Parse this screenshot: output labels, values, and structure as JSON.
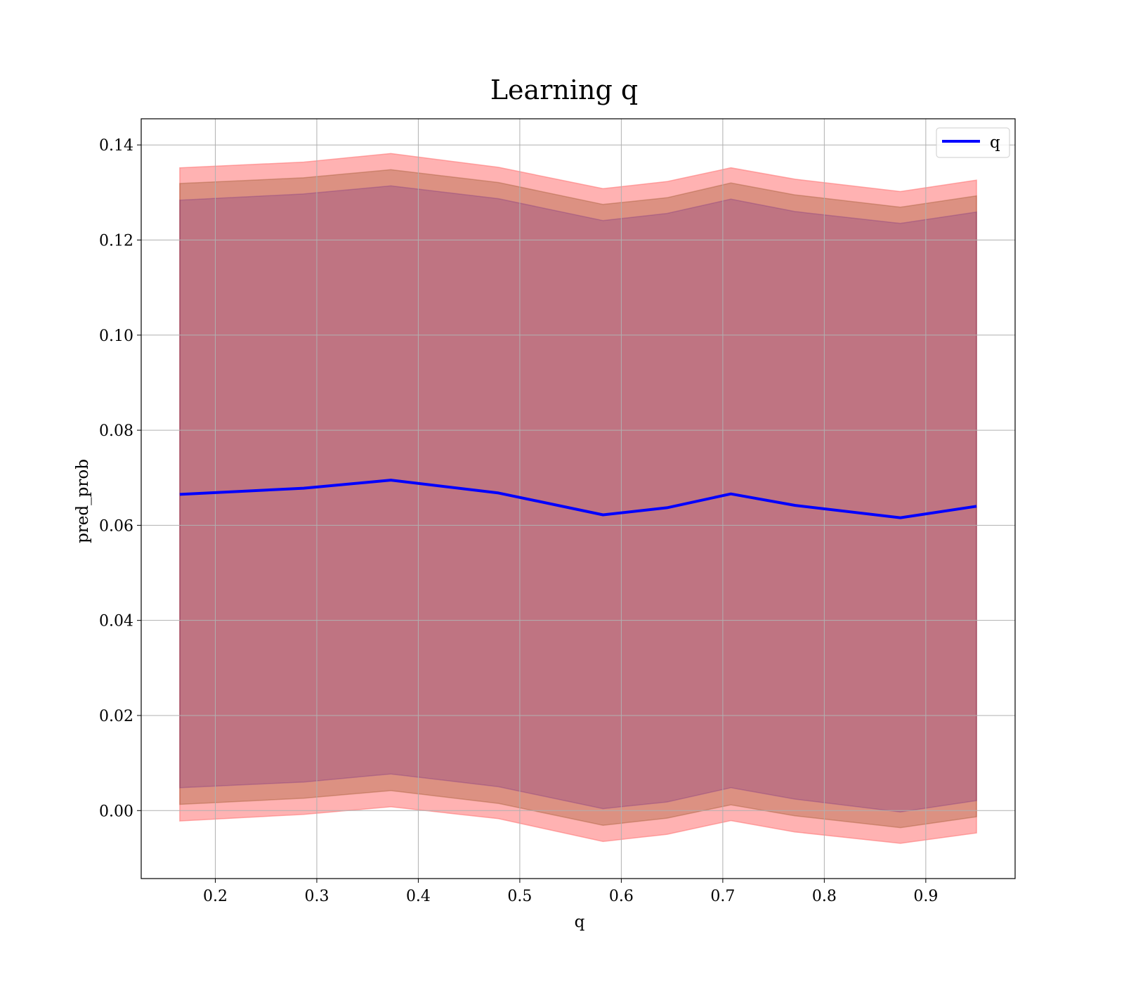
{
  "chart_data": {
    "type": "line",
    "title": "Learning q",
    "xlabel": "q",
    "ylabel": "pred_prob",
    "xlim": [
      0.127,
      0.988
    ],
    "ylim": [
      -0.0143,
      0.1455
    ],
    "grid": true,
    "legend_position": "top-right",
    "x_ticks": [
      "0.2",
      "0.3",
      "0.4",
      "0.5",
      "0.6",
      "0.7",
      "0.8",
      "0.9"
    ],
    "y_ticks": [
      "0.00",
      "0.02",
      "0.04",
      "0.06",
      "0.08",
      "0.10",
      "0.12",
      "0.14"
    ],
    "x": [
      0.165,
      0.287,
      0.373,
      0.479,
      0.582,
      0.645,
      0.708,
      0.771,
      0.875,
      0.95
    ],
    "series": [
      {
        "name": "q",
        "color": "#0000ff",
        "values": [
          0.0665,
          0.0678,
          0.0695,
          0.0668,
          0.0622,
          0.0637,
          0.0666,
          0.0642,
          0.0616,
          0.064
        ]
      }
    ],
    "bands": [
      {
        "color": "#ff6666",
        "opacity": 0.5,
        "lower": [
          -0.0022,
          -0.0008,
          0.0008,
          -0.0017,
          -0.0065,
          -0.005,
          -0.0021,
          -0.0045,
          -0.0069,
          -0.0047
        ],
        "upper": [
          0.1352,
          0.1364,
          0.1382,
          0.1353,
          0.1308,
          0.1323,
          0.1352,
          0.1328,
          0.1302,
          0.1326
        ]
      },
      {
        "color": "#8b4513",
        "opacity": 0.3,
        "lower": [
          0.0013,
          0.0026,
          0.0042,
          0.0015,
          -0.0031,
          -0.0016,
          0.0012,
          -0.0011,
          -0.0036,
          -0.0013
        ],
        "upper": [
          0.1319,
          0.1331,
          0.1348,
          0.1321,
          0.1275,
          0.1289,
          0.132,
          0.1295,
          0.1269,
          0.1293
        ]
      },
      {
        "color": "#4b0082",
        "opacity": 0.2,
        "lower": [
          0.0048,
          0.006,
          0.0077,
          0.005,
          0.0004,
          0.0018,
          0.0048,
          0.0024,
          -0.0003,
          0.0021
        ],
        "upper": [
          0.1284,
          0.1297,
          0.1314,
          0.1287,
          0.1241,
          0.1256,
          0.1286,
          0.126,
          0.1235,
          0.1259
        ]
      }
    ]
  }
}
